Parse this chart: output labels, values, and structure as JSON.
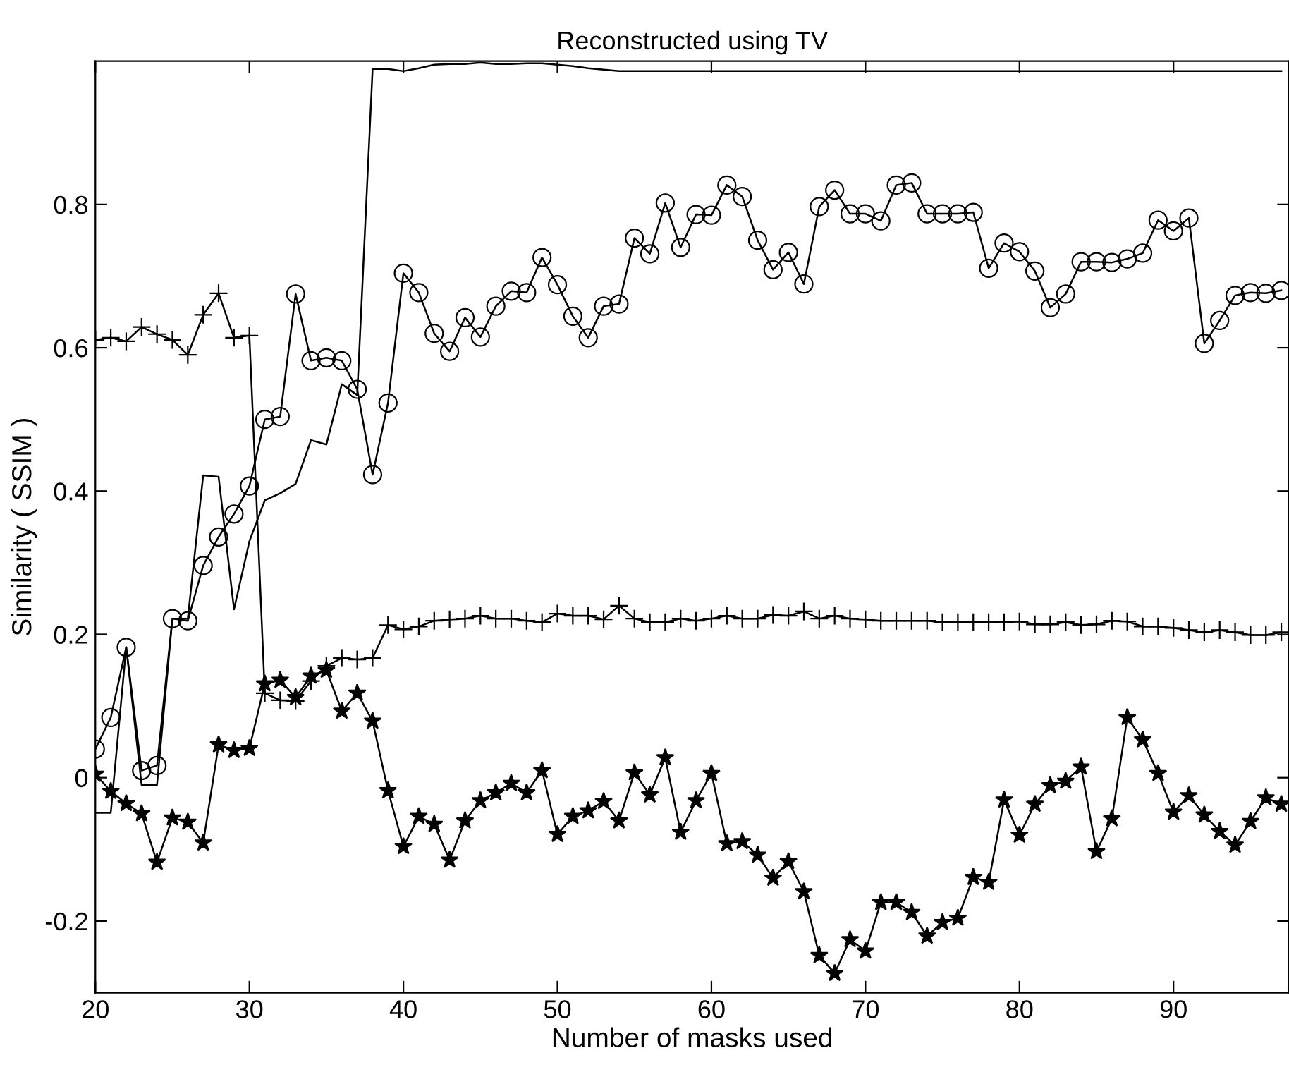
{
  "chart_data": {
    "type": "line",
    "title": "Reconstructed using TV",
    "xlabel": "Number of masks used",
    "ylabel": "Similarity ( SSIM )",
    "x": [
      20,
      21,
      22,
      23,
      24,
      25,
      26,
      27,
      28,
      29,
      30,
      31,
      32,
      33,
      34,
      35,
      36,
      37,
      38,
      39,
      40,
      41,
      42,
      43,
      44,
      45,
      46,
      47,
      48,
      49,
      50,
      51,
      52,
      53,
      54,
      55,
      56,
      57,
      58,
      59,
      60,
      61,
      62,
      63,
      64,
      65,
      66,
      67,
      68,
      69,
      70,
      71,
      72,
      73,
      74,
      75,
      76,
      77,
      78,
      79,
      80,
      81,
      82,
      83,
      84,
      85,
      86,
      87,
      88,
      89,
      90,
      91,
      92,
      93,
      94,
      95,
      96,
      97
    ],
    "xlim": [
      20,
      97.5
    ],
    "xticks": [
      20,
      30,
      40,
      50,
      60,
      70,
      80,
      90
    ],
    "ylim": [
      -0.3,
      1.0
    ],
    "yticks": [
      -0.2,
      0,
      0.2,
      0.4,
      0.6,
      0.8
    ],
    "grid": false,
    "series": [
      {
        "color": "#000000",
        "marker": "none",
        "values": [
          -0.049,
          -0.049,
          0.182,
          -0.01,
          -0.01,
          0.222,
          0.222,
          0.422,
          0.42,
          0.235,
          0.33,
          0.387,
          0.397,
          0.41,
          0.471,
          0.465,
          0.549,
          0.534,
          0.989,
          0.989,
          0.986,
          0.99,
          0.995,
          0.996,
          0.996,
          0.998,
          0.996,
          0.996,
          0.997,
          0.997,
          0.995,
          0.993,
          0.99,
          0.988,
          0.986,
          0.986,
          0.986,
          0.986,
          0.986,
          0.986,
          0.986,
          0.986,
          0.986,
          0.986,
          0.986,
          0.986,
          0.986,
          0.986,
          0.986,
          0.986,
          0.986,
          0.986,
          0.986,
          0.986,
          0.986,
          0.986,
          0.986,
          0.986,
          0.986,
          0.986,
          0.986,
          0.986,
          0.986,
          0.986,
          0.986,
          0.986,
          0.986,
          0.986,
          0.986,
          0.986,
          0.986,
          0.986,
          0.986,
          0.986,
          0.986,
          0.986,
          0.986,
          0.986
        ]
      },
      {
        "color": "#000000",
        "marker": "circle",
        "values": [
          0.04,
          0.084,
          0.182,
          0.01,
          0.017,
          0.222,
          0.219,
          0.296,
          0.336,
          0.368,
          0.407,
          0.5,
          0.504,
          0.675,
          0.582,
          0.586,
          0.582,
          0.542,
          0.423,
          0.523,
          0.704,
          0.677,
          0.62,
          0.595,
          0.642,
          0.615,
          0.658,
          0.679,
          0.677,
          0.726,
          0.688,
          0.644,
          0.614,
          0.658,
          0.661,
          0.753,
          0.731,
          0.802,
          0.74,
          0.786,
          0.785,
          0.827,
          0.811,
          0.75,
          0.709,
          0.733,
          0.689,
          0.797,
          0.82,
          0.787,
          0.787,
          0.777,
          0.827,
          0.83,
          0.787,
          0.787,
          0.787,
          0.789,
          0.711,
          0.746,
          0.734,
          0.707,
          0.656,
          0.675,
          0.72,
          0.72,
          0.719,
          0.724,
          0.732,
          0.778,
          0.763,
          0.781,
          0.606,
          0.638,
          0.673,
          0.677,
          0.676,
          0.68
        ]
      },
      {
        "color": "#000000",
        "marker": "cross",
        "values": [
          0.611,
          0.614,
          0.609,
          0.629,
          0.619,
          0.611,
          0.59,
          0.646,
          0.676,
          0.614,
          0.617,
          0.118,
          0.108,
          0.107,
          0.135,
          0.156,
          0.167,
          0.165,
          0.167,
          0.213,
          0.207,
          0.211,
          0.219,
          0.221,
          0.222,
          0.226,
          0.222,
          0.222,
          0.219,
          0.217,
          0.229,
          0.226,
          0.226,
          0.221,
          0.24,
          0.222,
          0.217,
          0.217,
          0.222,
          0.219,
          0.222,
          0.226,
          0.222,
          0.222,
          0.227,
          0.226,
          0.232,
          0.222,
          0.226,
          0.222,
          0.221,
          0.219,
          0.219,
          0.219,
          0.219,
          0.217,
          0.217,
          0.217,
          0.217,
          0.217,
          0.218,
          0.214,
          0.214,
          0.217,
          0.213,
          0.214,
          0.219,
          0.218,
          0.211,
          0.211,
          0.209,
          0.206,
          0.203,
          0.206,
          0.203,
          0.199,
          0.199,
          0.203
        ]
      },
      {
        "color": "#000000",
        "marker": "star",
        "values": [
          0.005,
          -0.019,
          -0.036,
          -0.05,
          -0.118,
          -0.056,
          -0.062,
          -0.091,
          0.046,
          0.038,
          0.041,
          0.131,
          0.136,
          0.112,
          0.142,
          0.15,
          0.093,
          0.118,
          0.079,
          -0.018,
          -0.096,
          -0.054,
          -0.065,
          -0.115,
          -0.06,
          -0.032,
          -0.021,
          -0.008,
          -0.021,
          0.01,
          -0.079,
          -0.054,
          -0.046,
          -0.033,
          -0.06,
          0.007,
          -0.024,
          0.028,
          -0.076,
          -0.032,
          0.006,
          -0.092,
          -0.089,
          -0.108,
          -0.14,
          -0.117,
          -0.159,
          -0.248,
          -0.273,
          -0.226,
          -0.242,
          -0.174,
          -0.174,
          -0.188,
          -0.221,
          -0.202,
          -0.196,
          -0.139,
          -0.146,
          -0.031,
          -0.08,
          -0.037,
          -0.011,
          -0.005,
          0.015,
          -0.103,
          -0.057,
          0.084,
          0.053,
          0.006,
          -0.048,
          -0.025,
          -0.052,
          -0.075,
          -0.094,
          -0.061,
          -0.028,
          -0.037
        ]
      }
    ]
  }
}
